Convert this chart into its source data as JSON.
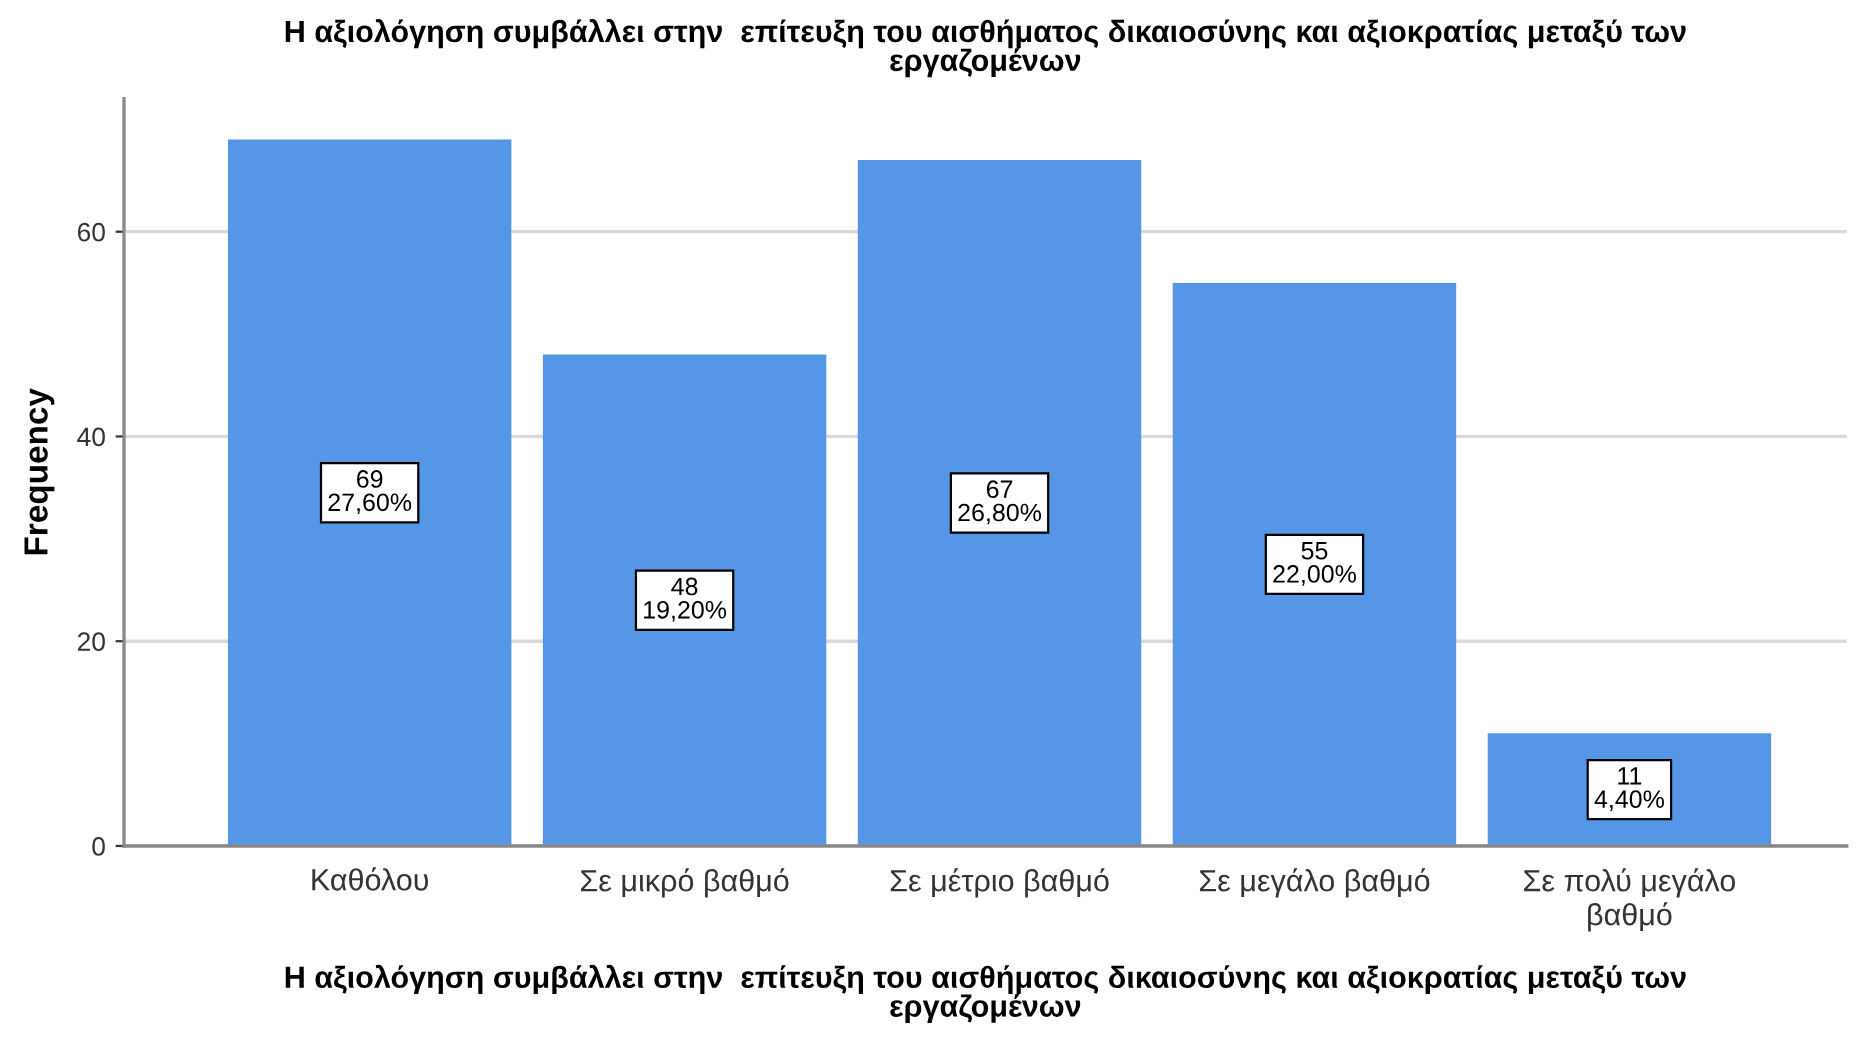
{
  "chart_data": {
    "type": "bar",
    "title": "Η αξιολόγηση συμβάλλει στην  επίτευξη του αισθήματος δικαιοσύνης και αξιοκρατίας μεταξύ των\nεργαζομένων",
    "xlabel": "Η αξιολόγηση συμβάλλει στην  επίτευξη του αισθήματος δικαιοσύνης και αξιοκρατίας μεταξύ των\nεργαζομένων",
    "ylabel": "Frequency",
    "categories": [
      "Καθόλου",
      "Σε μικρό βαθμό",
      "Σε μέτριο βαθμό",
      "Σε μεγάλο βαθμό",
      "Σε πολύ μεγάλο\nβαθμό"
    ],
    "values": [
      69,
      48,
      67,
      55,
      11
    ],
    "value_labels": [
      "69\n27,60%",
      "48\n19,20%",
      "67\n26,80%",
      "55\n22,00%",
      "11\n4,40%"
    ],
    "color": "#5596e6",
    "ylim": [
      0,
      73
    ],
    "yticks": [
      0,
      20,
      40,
      60
    ],
    "grid": "y"
  }
}
